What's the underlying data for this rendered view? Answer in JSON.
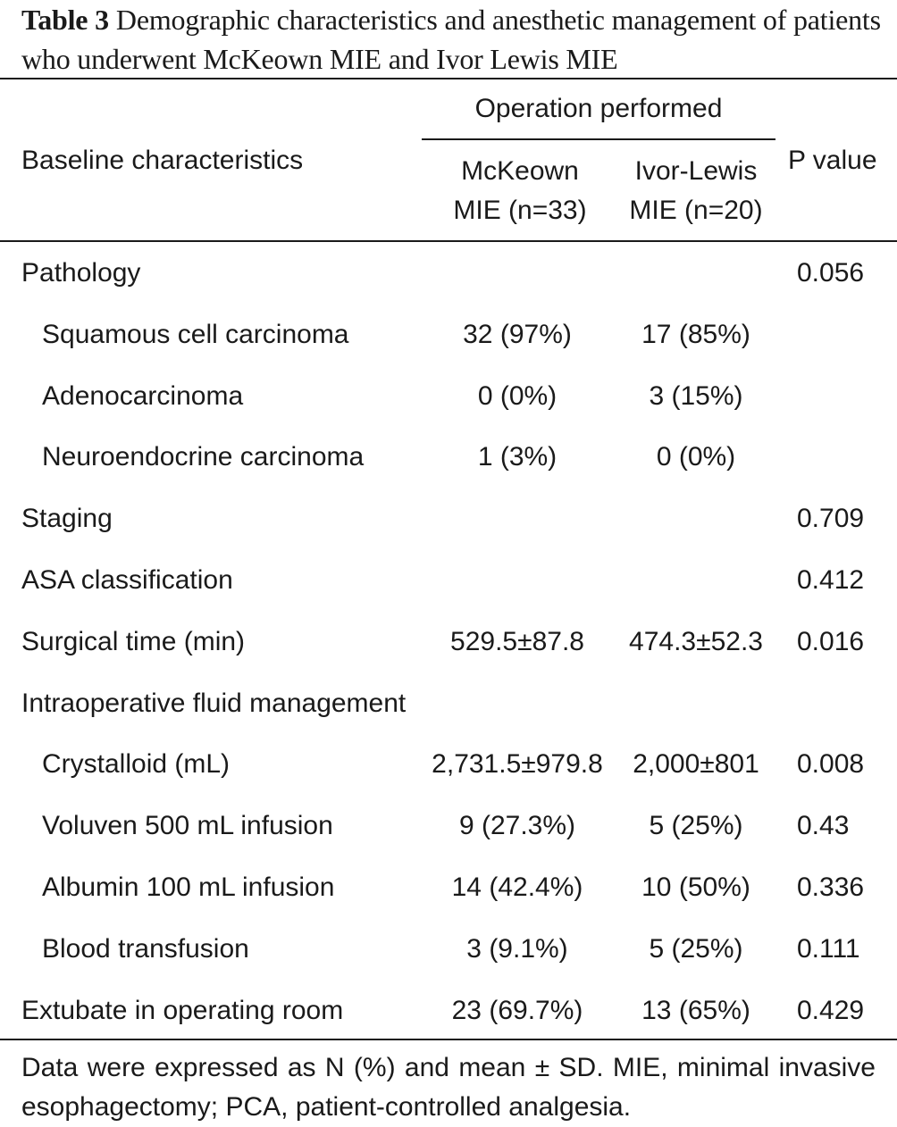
{
  "caption": {
    "label": "Table 3",
    "text": "Demographic characteristics and anesthetic management of patients who underwent McKeown MIE and Ivor Lewis MIE"
  },
  "header": {
    "baseline": "Baseline characteristics",
    "group": "Operation performed",
    "col1": "McKeown MIE (n=33)",
    "col2": "Ivor-Lewis MIE (n=20)",
    "pvalue": "P value"
  },
  "rows": [
    {
      "label": "Pathology",
      "indent": false,
      "c1": "",
      "c2": "",
      "p": "0.056"
    },
    {
      "label": "Squamous cell carcinoma",
      "indent": true,
      "c1": "32 (97%)",
      "c2": "17 (85%)",
      "p": ""
    },
    {
      "label": "Adenocarcinoma",
      "indent": true,
      "c1": "0 (0%)",
      "c2": "3 (15%)",
      "p": ""
    },
    {
      "label": "Neuroendocrine carcinoma",
      "indent": true,
      "c1": "1 (3%)",
      "c2": "0 (0%)",
      "p": ""
    },
    {
      "label": "Staging",
      "indent": false,
      "c1": "",
      "c2": "",
      "p": "0.709"
    },
    {
      "label": "ASA classification",
      "indent": false,
      "c1": "",
      "c2": "",
      "p": "0.412"
    },
    {
      "label": "Surgical time (min)",
      "indent": false,
      "c1": "529.5±87.8",
      "c2": "474.3±52.3",
      "p": "0.016"
    },
    {
      "label": "Intraoperative fluid management",
      "indent": false,
      "c1": "",
      "c2": "",
      "p": ""
    },
    {
      "label": "Crystalloid (mL)",
      "indent": true,
      "c1": "2,731.5±979.8",
      "c2": "2,000±801",
      "p": "0.008"
    },
    {
      "label": "Voluven 500 mL infusion",
      "indent": true,
      "c1": "9 (27.3%)",
      "c2": "5 (25%)",
      "p": "0.43"
    },
    {
      "label": "Albumin 100 mL infusion",
      "indent": true,
      "c1": "14 (42.4%)",
      "c2": "10 (50%)",
      "p": "0.336"
    },
    {
      "label": "Blood transfusion",
      "indent": true,
      "c1": "3 (9.1%)",
      "c2": "5 (25%)",
      "p": "0.111"
    },
    {
      "label": "Extubate in operating room",
      "indent": false,
      "c1": "23 (69.7%)",
      "c2": "13 (65%)",
      "p": "0.429"
    }
  ],
  "footnote": "Data were expressed as N (%) and mean ± SD. MIE, minimal invasive esophagectomy; PCA, patient-controlled analgesia."
}
